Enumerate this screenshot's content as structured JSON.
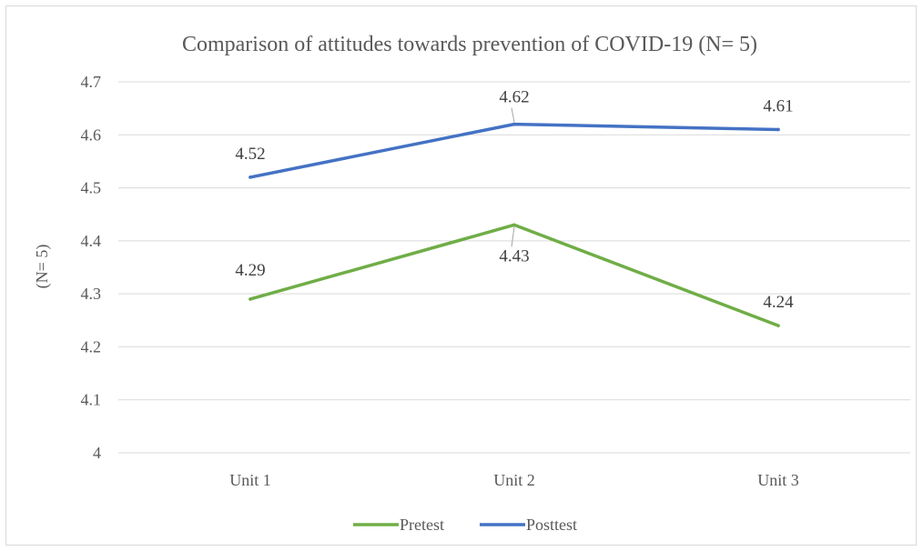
{
  "chart_data": {
    "type": "line",
    "title": "Comparison of attitudes towards prevention of COVID-19 (N= 5)",
    "xlabel": "",
    "ylabel": "(N= 5)",
    "categories": [
      "Unit 1",
      "Unit 2",
      "Unit 3"
    ],
    "ylim": [
      4,
      4.7
    ],
    "yticks": [
      "4",
      "4.1",
      "4.2",
      "4.3",
      "4.4",
      "4.5",
      "4.6",
      "4.7"
    ],
    "grid": true,
    "legend_position": "bottom",
    "series": [
      {
        "name": "Pretest",
        "values": [
          4.29,
          4.43,
          4.24
        ],
        "labels": [
          "4.29",
          "4.43",
          "4.24"
        ],
        "color": "#70ad47"
      },
      {
        "name": "Posttest",
        "values": [
          4.52,
          4.62,
          4.61
        ],
        "labels": [
          "4.52",
          "4.62",
          "4.61"
        ],
        "color": "#4472c4"
      }
    ]
  }
}
